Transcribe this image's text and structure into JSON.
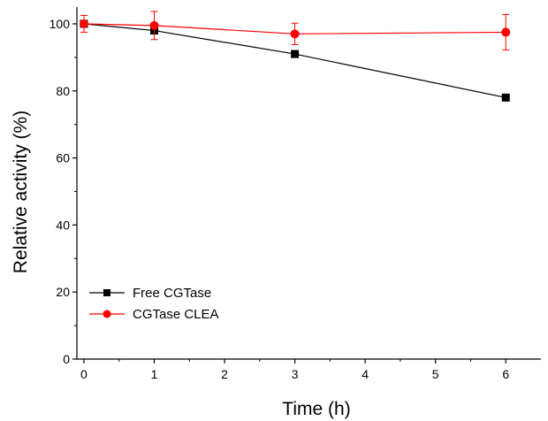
{
  "chart_data": {
    "type": "line",
    "xlabel": "Time (h)",
    "ylabel": "Relative activity (%)",
    "xlim": [
      -0.1,
      6.5
    ],
    "ylim": [
      0,
      105
    ],
    "x_ticks": [
      0,
      1,
      2,
      3,
      4,
      5,
      6
    ],
    "y_ticks": [
      0,
      20,
      40,
      60,
      80,
      100
    ],
    "x_tick_labels": [
      "0",
      "1",
      "2",
      "3",
      "4",
      "5",
      "6"
    ],
    "y_tick_labels": [
      "0",
      "20",
      "40",
      "60",
      "80",
      "100"
    ],
    "grid": false,
    "legend_position": "bottom-left",
    "series": [
      {
        "name": "Free CGTase",
        "color": "#000000",
        "marker": "square",
        "x": [
          0,
          1,
          3,
          6
        ],
        "y": [
          100,
          98,
          91,
          78
        ],
        "error": [
          0,
          0,
          0,
          0
        ]
      },
      {
        "name": "CGTase CLEA",
        "color": "#ff0000",
        "marker": "circle",
        "x": [
          0,
          1,
          3,
          6
        ],
        "y": [
          100,
          99.5,
          97,
          97.5
        ],
        "error": [
          2.5,
          4.2,
          3.2,
          5.3
        ]
      }
    ]
  }
}
